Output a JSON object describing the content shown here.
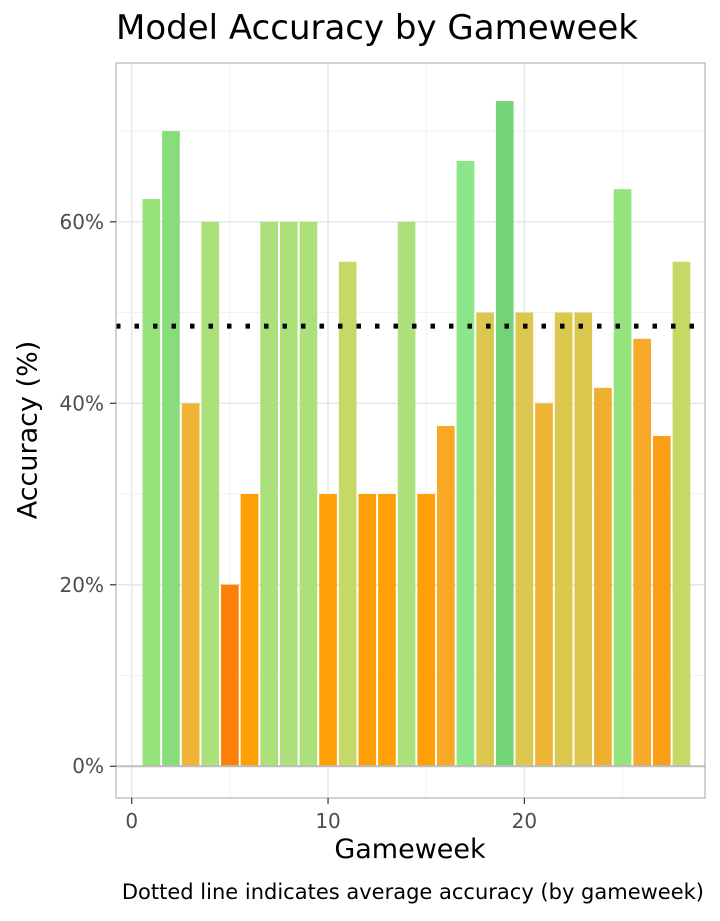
{
  "chart_data": {
    "type": "bar",
    "title": "Model Accuracy by Gameweek",
    "xlabel": "Gameweek",
    "ylabel": "Accuracy (%)",
    "caption": "Dotted line indicates average accuracy (by gameweek)",
    "x": [
      1,
      2,
      3,
      4,
      5,
      6,
      7,
      8,
      9,
      10,
      11,
      12,
      13,
      14,
      15,
      16,
      17,
      18,
      19,
      20,
      21,
      22,
      23,
      24,
      25,
      26,
      27,
      28
    ],
    "values": [
      62.5,
      70.0,
      40.0,
      60.0,
      20.0,
      30.0,
      60.0,
      60.0,
      60.0,
      30.0,
      55.6,
      30.0,
      30.0,
      60.0,
      30.0,
      37.5,
      66.7,
      50.0,
      73.3,
      50.0,
      40.0,
      50.0,
      50.0,
      41.7,
      63.6,
      47.1,
      36.4,
      55.6
    ],
    "colors": [
      "#98e27c",
      "#86dd7a",
      "#efb433",
      "#abe07a",
      "#fc7f07",
      "#fe9f06",
      "#abe07a",
      "#abe07a",
      "#abe07a",
      "#fe9f06",
      "#c5d966",
      "#fe9f06",
      "#fe9f06",
      "#abe07a",
      "#fe9f06",
      "#f9a825",
      "#8ce68a",
      "#dcc84e",
      "#72d474",
      "#dcc84e",
      "#efb433",
      "#dcc84e",
      "#dcc84e",
      "#f0ae30",
      "#94e47e",
      "#f7aa2a",
      "#f99e15",
      "#c5d966"
    ],
    "average": 48.5,
    "x_ticks": [
      0,
      10,
      20
    ],
    "y_ticks": [
      0,
      20,
      40,
      60
    ],
    "y_tick_labels": [
      "0%",
      "20%",
      "40%",
      "60%"
    ],
    "xlim": [
      -0.8,
      29.2
    ],
    "ylim": [
      -3.5,
      77.5
    ],
    "grid": true,
    "legend": "none"
  }
}
